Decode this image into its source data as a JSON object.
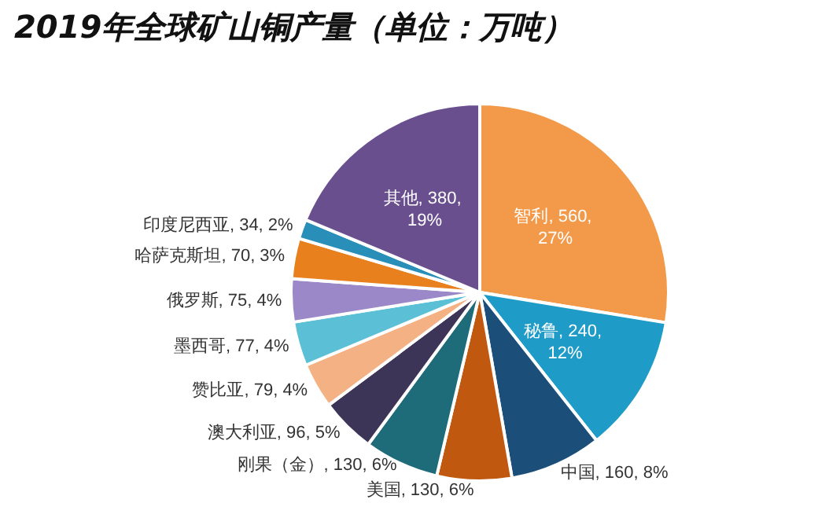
{
  "chart_data": {
    "type": "pie",
    "title": "2019年全球矿山铜产量（单位：万吨）",
    "categories": [
      "智利",
      "秘鲁",
      "中国",
      "美国",
      "刚果（金）",
      "澳大利亚",
      "赞比亚",
      "墨西哥",
      "俄罗斯",
      "哈萨克斯坦",
      "印度尼西亚",
      "其他"
    ],
    "values": [
      560,
      240,
      160,
      130,
      130,
      96,
      79,
      77,
      75,
      70,
      34,
      380
    ],
    "colors": [
      "#f39a4a",
      "#1f9bc8",
      "#1b4f7a",
      "#c0580f",
      "#1e6b7a",
      "#3d3558",
      "#f4b183",
      "#5bc0d6",
      "#9a88c8",
      "#e8801e",
      "#2a8fb8",
      "#6a4f8f"
    ],
    "value_labels": [
      "560, 27%",
      "240, 12%",
      "160, 8%",
      "130, 6%",
      "130, 6%",
      "96, 5%",
      "79, 4%",
      "77, 4%",
      "75, 4%",
      "70, 3%",
      "34, 2%",
      "380, 19%"
    ]
  }
}
